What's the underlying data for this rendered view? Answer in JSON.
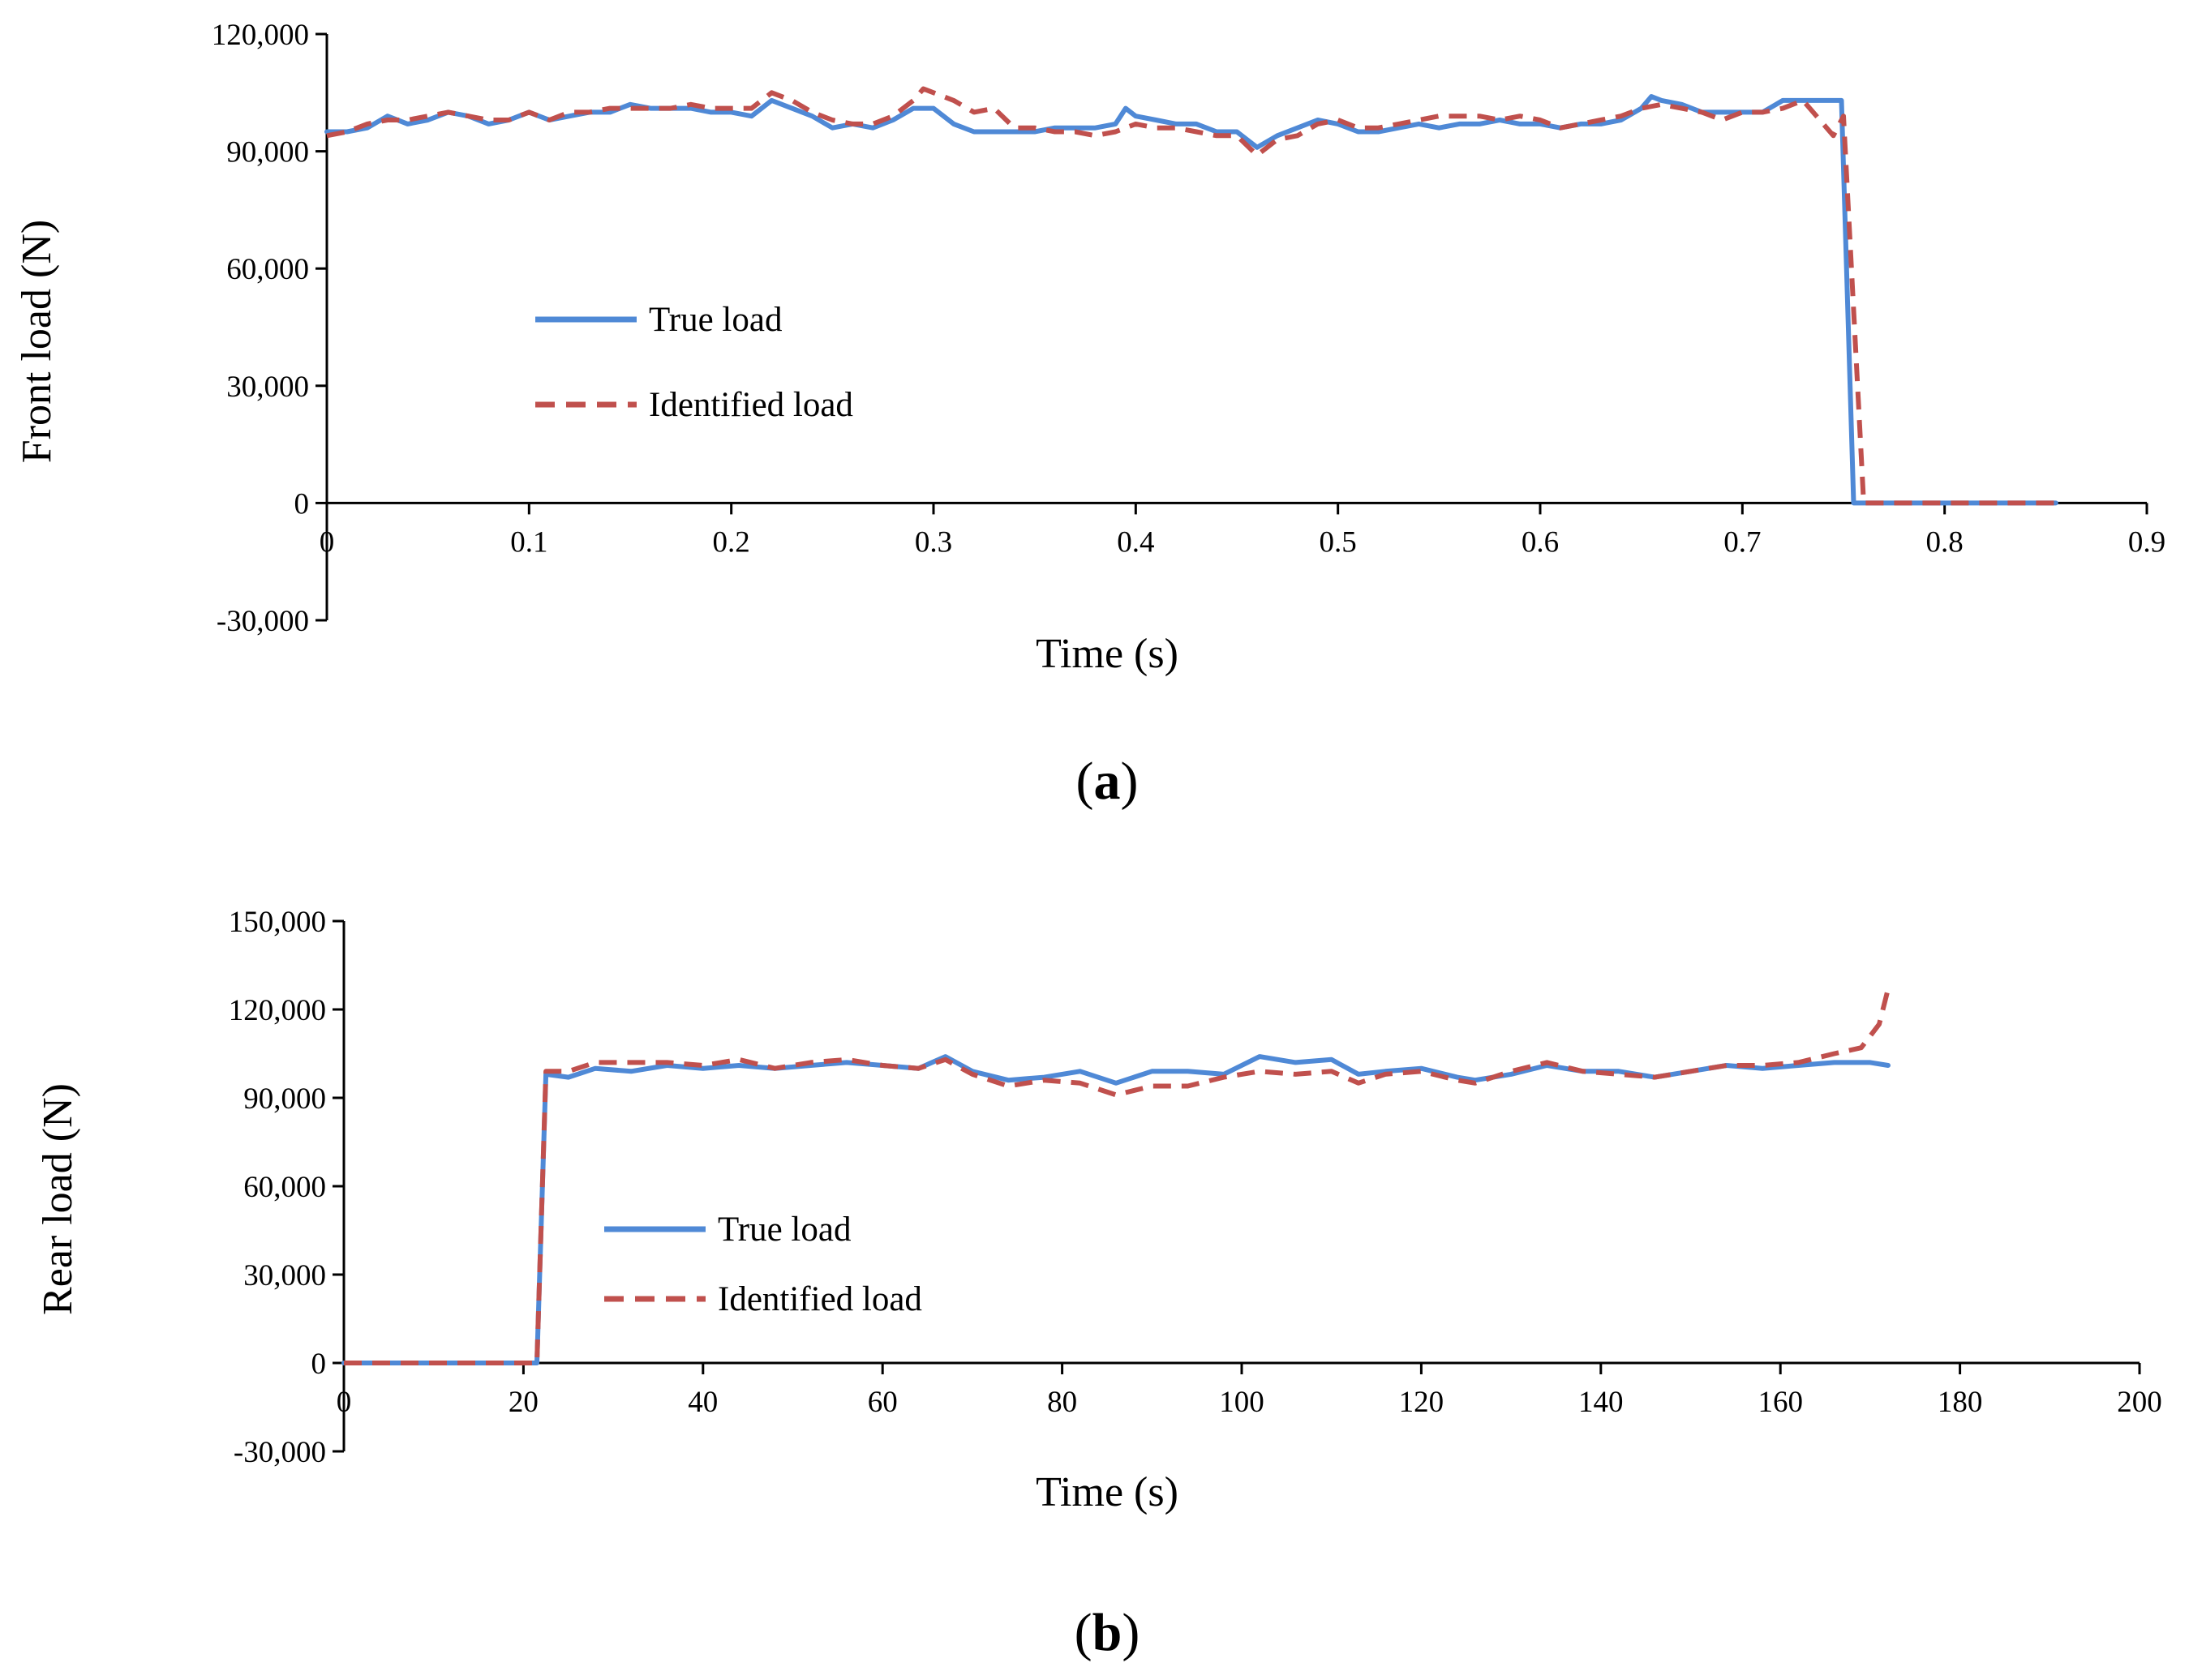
{
  "chart_data": [
    {
      "type": "line",
      "panel_label": "a",
      "xlabel": "Time (s)",
      "ylabel": "Front load (N)",
      "xlim": [
        0,
        0.9
      ],
      "ylim": [
        -30000,
        120000
      ],
      "x_ticks": [
        0,
        0.1,
        0.2,
        0.3,
        0.4,
        0.5,
        0.6,
        0.7,
        0.8,
        0.9
      ],
      "x_tick_labels": [
        "0",
        "0.1",
        "0.2",
        "0.3",
        "0.4",
        "0.5",
        "0.6",
        "0.7",
        "0.8",
        "0.9"
      ],
      "y_ticks": [
        -30000,
        0,
        30000,
        60000,
        90000,
        120000
      ],
      "y_tick_labels": [
        "-30,000",
        "0",
        "30,000",
        "60,000",
        "90,000",
        "120,000"
      ],
      "legend": [
        "True load",
        "Identified load"
      ],
      "series": [
        {
          "name": "True load",
          "color": "#4f89d6",
          "dash": "solid",
          "x": [
            0,
            0.01,
            0.02,
            0.03,
            0.04,
            0.05,
            0.06,
            0.07,
            0.08,
            0.09,
            0.1,
            0.11,
            0.12,
            0.13,
            0.14,
            0.15,
            0.16,
            0.17,
            0.18,
            0.19,
            0.2,
            0.21,
            0.22,
            0.23,
            0.24,
            0.25,
            0.26,
            0.27,
            0.28,
            0.29,
            0.3,
            0.31,
            0.32,
            0.33,
            0.34,
            0.35,
            0.36,
            0.37,
            0.38,
            0.39,
            0.395,
            0.4,
            0.41,
            0.42,
            0.43,
            0.44,
            0.45,
            0.46,
            0.47,
            0.48,
            0.49,
            0.5,
            0.51,
            0.52,
            0.53,
            0.54,
            0.55,
            0.56,
            0.57,
            0.58,
            0.59,
            0.6,
            0.61,
            0.62,
            0.63,
            0.64,
            0.65,
            0.655,
            0.66,
            0.67,
            0.68,
            0.69,
            0.7,
            0.71,
            0.72,
            0.73,
            0.74,
            0.749,
            0.755,
            0.76,
            0.8,
            0.855
          ],
          "y": [
            95000,
            95000,
            96000,
            99000,
            97000,
            98000,
            100000,
            99000,
            97000,
            98000,
            100000,
            98000,
            99000,
            100000,
            100000,
            102000,
            101000,
            101000,
            101000,
            100000,
            100000,
            99000,
            103000,
            101000,
            99000,
            96000,
            97000,
            96000,
            98000,
            101000,
            101000,
            97000,
            95000,
            95000,
            95000,
            95000,
            96000,
            96000,
            96000,
            97000,
            101000,
            99000,
            98000,
            97000,
            97000,
            95000,
            95000,
            91000,
            94000,
            96000,
            98000,
            97000,
            95000,
            95000,
            96000,
            97000,
            96000,
            97000,
            97000,
            98000,
            97000,
            97000,
            96000,
            97000,
            97000,
            98000,
            101000,
            104000,
            103000,
            102000,
            100000,
            100000,
            100000,
            100000,
            103000,
            103000,
            103000,
            103000,
            0,
            0,
            0,
            0
          ]
        },
        {
          "name": "Identified load",
          "color": "#c0504d",
          "dash": "dashed",
          "x": [
            0,
            0.01,
            0.02,
            0.03,
            0.04,
            0.05,
            0.06,
            0.07,
            0.08,
            0.09,
            0.1,
            0.11,
            0.12,
            0.13,
            0.14,
            0.15,
            0.16,
            0.17,
            0.18,
            0.19,
            0.2,
            0.21,
            0.22,
            0.23,
            0.24,
            0.25,
            0.26,
            0.27,
            0.28,
            0.29,
            0.295,
            0.3,
            0.31,
            0.32,
            0.33,
            0.34,
            0.35,
            0.36,
            0.37,
            0.38,
            0.39,
            0.4,
            0.41,
            0.42,
            0.43,
            0.44,
            0.45,
            0.46,
            0.47,
            0.48,
            0.49,
            0.5,
            0.51,
            0.52,
            0.53,
            0.54,
            0.55,
            0.56,
            0.57,
            0.58,
            0.59,
            0.6,
            0.61,
            0.62,
            0.63,
            0.64,
            0.65,
            0.66,
            0.67,
            0.68,
            0.69,
            0.7,
            0.71,
            0.72,
            0.73,
            0.74,
            0.745,
            0.75,
            0.76,
            0.8,
            0.855
          ],
          "y": [
            94000,
            95000,
            97000,
            98000,
            98000,
            99000,
            100000,
            99000,
            98000,
            98000,
            100000,
            98000,
            100000,
            100000,
            101000,
            101000,
            101000,
            101000,
            102000,
            101000,
            101000,
            101000,
            105000,
            103000,
            100000,
            98000,
            97000,
            97000,
            99000,
            103000,
            106000,
            105000,
            103000,
            100000,
            101000,
            96000,
            96000,
            95000,
            95000,
            94000,
            95000,
            97000,
            96000,
            96000,
            95000,
            94000,
            94000,
            89000,
            93000,
            94000,
            97000,
            98000,
            96000,
            96000,
            97000,
            98000,
            99000,
            99000,
            99000,
            98000,
            99000,
            98000,
            96000,
            97000,
            98000,
            99000,
            101000,
            102000,
            101000,
            100000,
            98000,
            100000,
            100000,
            101000,
            103000,
            97000,
            94000,
            99000,
            0,
            0,
            0
          ]
        }
      ]
    },
    {
      "type": "line",
      "panel_label": "b",
      "xlabel": "Time (s)",
      "ylabel": "Rear load (N)",
      "xlim": [
        0,
        200
      ],
      "ylim": [
        -30000,
        150000
      ],
      "x_ticks": [
        0,
        20,
        40,
        60,
        80,
        100,
        120,
        140,
        160,
        180,
        200
      ],
      "x_tick_labels": [
        "0",
        "20",
        "40",
        "60",
        "80",
        "100",
        "120",
        "140",
        "160",
        "180",
        "200"
      ],
      "y_ticks": [
        -30000,
        0,
        30000,
        60000,
        90000,
        120000,
        150000
      ],
      "y_tick_labels": [
        "-30,000",
        "0",
        "30,000",
        "60,000",
        "90,000",
        "120,000",
        "150,000"
      ],
      "legend": [
        "True load",
        "Identified load"
      ],
      "series": [
        {
          "name": "True load",
          "color": "#4f89d6",
          "dash": "solid",
          "x": [
            0,
            21.5,
            22.5,
            25,
            28,
            32,
            36,
            40,
            44,
            48,
            52,
            56,
            60,
            64,
            67,
            70,
            74,
            78,
            82,
            86,
            90,
            94,
            98,
            102,
            106,
            110,
            113,
            116,
            120,
            124,
            126,
            130,
            134,
            138,
            142,
            146,
            150,
            154,
            158,
            162,
            166,
            170,
            172
          ],
          "y": [
            0,
            0,
            98000,
            97000,
            100000,
            99000,
            101000,
            100000,
            101000,
            100000,
            101000,
            102000,
            101000,
            100000,
            104000,
            99000,
            96000,
            97000,
            99000,
            95000,
            99000,
            99000,
            98000,
            104000,
            102000,
            103000,
            98000,
            99000,
            100000,
            97000,
            96000,
            98000,
            101000,
            99000,
            99000,
            97000,
            99000,
            101000,
            100000,
            101000,
            102000,
            102000,
            101000
          ]
        },
        {
          "name": "Identified load",
          "color": "#c0504d",
          "dash": "dashed",
          "x": [
            0,
            21.5,
            22.5,
            25,
            28,
            32,
            36,
            40,
            44,
            48,
            52,
            56,
            60,
            64,
            67,
            70,
            74,
            78,
            82,
            86,
            90,
            94,
            98,
            102,
            106,
            110,
            113,
            116,
            120,
            124,
            126,
            130,
            134,
            138,
            142,
            146,
            150,
            154,
            158,
            162,
            166,
            169,
            171,
            172
          ],
          "y": [
            0,
            0,
            99000,
            99000,
            102000,
            102000,
            102000,
            101000,
            103000,
            100000,
            102000,
            103000,
            101000,
            100000,
            103000,
            98000,
            94000,
            96000,
            95000,
            91000,
            94000,
            94000,
            97000,
            99000,
            98000,
            99000,
            95000,
            98000,
            99000,
            96000,
            95000,
            99000,
            102000,
            99000,
            98000,
            97000,
            99000,
            101000,
            101000,
            102000,
            105000,
            107000,
            115000,
            127000
          ]
        }
      ]
    }
  ]
}
